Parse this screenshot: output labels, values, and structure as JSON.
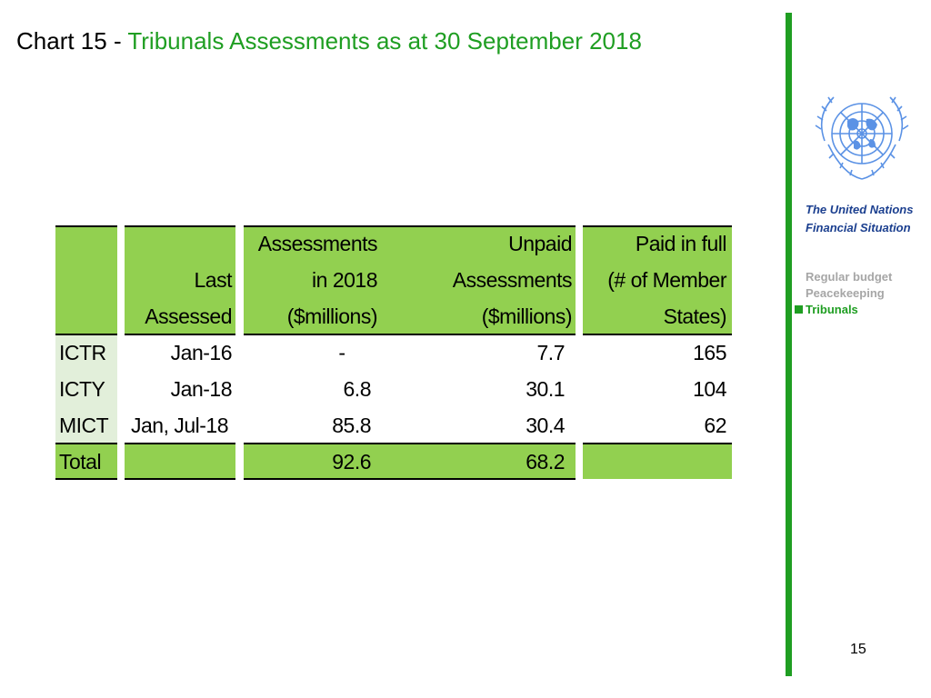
{
  "header": {
    "title_prefix": "Chart 15 - ",
    "title_main": "Tribunals Assessments as at 30 September 2018"
  },
  "sidebar": {
    "logo_icon": "un-emblem-icon",
    "title_line1": "The United Nations",
    "title_line2": "Financial Situation",
    "nav": [
      "Regular budget",
      "Peacekeeping",
      "Tribunals"
    ],
    "active_nav": "Tribunals"
  },
  "table": {
    "headers": {
      "last_assessed": [
        "Last",
        "Assessed"
      ],
      "assessments": [
        "Assessments",
        "in 2018",
        "($millions)"
      ],
      "unpaid": [
        "Unpaid",
        "Assessments",
        "($millions)"
      ],
      "paid_in_full": [
        "Paid in full",
        "(# of Member",
        "States)"
      ]
    },
    "rows": [
      {
        "name": "ICTR",
        "last": "Jan-16",
        "assess": "-",
        "unpaid": "7.7",
        "paid": "165"
      },
      {
        "name": "ICTY",
        "last": "Jan-18",
        "assess": "6.8",
        "unpaid": "30.1",
        "paid": "104"
      },
      {
        "name": "MICT",
        "last": "Jan, Jul-18",
        "assess": "85.8",
        "unpaid": "30.4",
        "paid": "62"
      }
    ],
    "total": {
      "name": "Total",
      "assess": "92.6",
      "unpaid": "68.2"
    }
  },
  "colors": {
    "accent_green": "#1f9e22",
    "cell_green": "#92d050",
    "label_tint": "#e2efda",
    "nav_blue": "#1b3f8f"
  },
  "footer": {
    "page_number": "15"
  }
}
